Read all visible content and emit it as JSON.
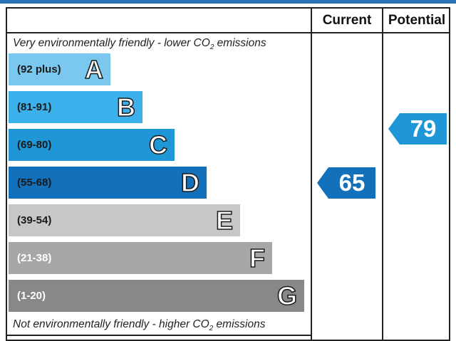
{
  "chart_data": {
    "type": "energy-rating",
    "columns": [
      "Current",
      "Potential"
    ],
    "top_caption": {
      "text": "Very environmentally friendly - lower CO",
      "sub": "2",
      "tail": " emissions"
    },
    "bottom_caption": {
      "text": "Not environmentally friendly - higher CO",
      "sub": "2",
      "tail": " emissions"
    },
    "bands": [
      {
        "range": "(92 plus)",
        "letter": "A",
        "color": "#7ac8f0",
        "text_color": "#1a1a1a"
      },
      {
        "range": "(81-91)",
        "letter": "B",
        "color": "#3bb0ea",
        "text_color": "#1a1a1a"
      },
      {
        "range": "(69-80)",
        "letter": "C",
        "color": "#1f96d6",
        "text_color": "#1a1a1a"
      },
      {
        "range": "(55-68)",
        "letter": "D",
        "color": "#1370bb",
        "text_color": "#1a1a1a"
      },
      {
        "range": "(39-54)",
        "letter": "E",
        "color": "#c7c7c7",
        "text_color": "#1a1a1a"
      },
      {
        "range": "(21-38)",
        "letter": "F",
        "color": "#a7a7a7",
        "text_color": "#ffffff"
      },
      {
        "range": "(1-20)",
        "letter": "G",
        "color": "#888888",
        "text_color": "#ffffff"
      }
    ],
    "current": {
      "value": 65,
      "band": "D",
      "color": "#1370bb"
    },
    "potential": {
      "value": 79,
      "band": "C",
      "color": "#1f96d6"
    }
  }
}
